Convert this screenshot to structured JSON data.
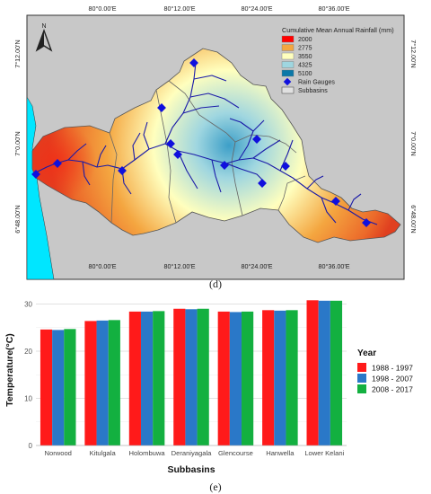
{
  "map": {
    "panel_label": "(d)",
    "legend_title": "Cumulative Mean Annual Rainfall (mm)",
    "legend_items": [
      {
        "label": "2000",
        "color": "#ff0000"
      },
      {
        "label": "2775",
        "color": "#f4a640"
      },
      {
        "label": "3550",
        "color": "#ffffbe"
      },
      {
        "label": "4325",
        "color": "#9fd6e0"
      },
      {
        "label": "5100",
        "color": "#0b78a8"
      }
    ],
    "gauge_label": "Rain Gauges",
    "subbasin_label": "Subbasins",
    "top_ticks": [
      "80°0.00'E",
      "80°12.00'E",
      "80°24.00'E",
      "80°36.00'E"
    ],
    "bottom_ticks": [
      "80°0.00'E",
      "80°12.00'E",
      "80°24.00'E",
      "80°36.00'E"
    ],
    "left_ticks": [
      "7°12.00'N",
      "7°0.00'N",
      "6°48.00'N"
    ],
    "right_ticks": [
      "7°12.00'N",
      "7°0.00'N",
      "6°48.00'N"
    ],
    "north_label": "N",
    "colors": {
      "background": "#c8c8c8",
      "ocean": "#00e6ff",
      "river": "#1a1aa8",
      "gauge": "#1010dd"
    }
  },
  "chart_data": {
    "type": "bar",
    "panel_label": "(e)",
    "categories": [
      "Norwood",
      "Kitulgala",
      "Holombuwa",
      "Deraniyagala",
      "Glencourse",
      "Hanwella",
      "Lower Kelani"
    ],
    "series": [
      {
        "name": "1988 - 1997",
        "color": "#ff1a1a",
        "values": [
          24.6,
          26.4,
          28.4,
          29.0,
          28.4,
          28.7,
          30.8
        ]
      },
      {
        "name": "1998 - 2007",
        "color": "#2a78c8",
        "values": [
          24.5,
          26.5,
          28.4,
          28.9,
          28.3,
          28.6,
          30.7
        ]
      },
      {
        "name": "2008 - 2017",
        "color": "#13b040",
        "values": [
          24.7,
          26.6,
          28.5,
          29.0,
          28.4,
          28.7,
          30.7
        ]
      }
    ],
    "xlabel": "Subbasins",
    "ylabel": "Temperature(°C)",
    "ylim": [
      0,
      32
    ],
    "yticks": [
      0,
      10,
      20,
      30
    ],
    "legend_title": "Year",
    "legend_position": "right"
  }
}
